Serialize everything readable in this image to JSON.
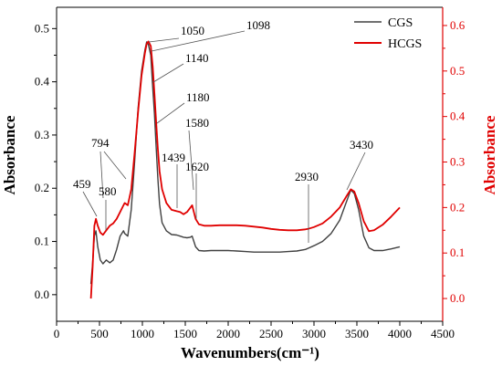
{
  "chart_data": {
    "type": "line",
    "xlabel": "Wavenumbers(cm⁻¹)",
    "ylabel_left": "Absorbance",
    "ylabel_right": "Absorbance",
    "xlim": [
      0,
      4500
    ],
    "ylim_left": [
      -0.05,
      0.54
    ],
    "ylim_right": [
      -0.05,
      0.64
    ],
    "x_ticks": [
      0,
      500,
      1000,
      1500,
      2000,
      2500,
      3000,
      3500,
      4000,
      4500
    ],
    "y_ticks_left": [
      0.0,
      0.1,
      0.2,
      0.3,
      0.4,
      0.5
    ],
    "y_ticks_right": [
      0.0,
      0.1,
      0.2,
      0.3,
      0.4,
      0.5,
      0.6
    ],
    "x_tick_labels": [
      "0",
      "500",
      "1000",
      "1500",
      "2000",
      "2500",
      "3000",
      "3500",
      "4000",
      "4500"
    ],
    "y_tick_labels_left": [
      "0.0",
      "0.1",
      "0.2",
      "0.3",
      "0.4",
      "0.5"
    ],
    "y_tick_labels_right": [
      "0.0",
      "0.1",
      "0.2",
      "0.3",
      "0.4",
      "0.5",
      "0.6"
    ],
    "legend_position": "top-right",
    "series": [
      {
        "name": "CGS",
        "color": "#404040",
        "axis": "left",
        "points": [
          [
            400,
            0.02
          ],
          [
            420,
            0.06
          ],
          [
            440,
            0.11
          ],
          [
            459,
            0.12
          ],
          [
            480,
            0.09
          ],
          [
            510,
            0.065
          ],
          [
            540,
            0.058
          ],
          [
            580,
            0.065
          ],
          [
            620,
            0.06
          ],
          [
            660,
            0.065
          ],
          [
            700,
            0.085
          ],
          [
            740,
            0.11
          ],
          [
            780,
            0.12
          ],
          [
            794,
            0.115
          ],
          [
            830,
            0.11
          ],
          [
            870,
            0.16
          ],
          [
            910,
            0.25
          ],
          [
            950,
            0.35
          ],
          [
            990,
            0.42
          ],
          [
            1030,
            0.46
          ],
          [
            1050,
            0.475
          ],
          [
            1070,
            0.47
          ],
          [
            1098,
            0.45
          ],
          [
            1120,
            0.39
          ],
          [
            1140,
            0.34
          ],
          [
            1160,
            0.28
          ],
          [
            1180,
            0.22
          ],
          [
            1200,
            0.17
          ],
          [
            1230,
            0.135
          ],
          [
            1280,
            0.12
          ],
          [
            1340,
            0.113
          ],
          [
            1400,
            0.112
          ],
          [
            1439,
            0.11
          ],
          [
            1480,
            0.108
          ],
          [
            1520,
            0.107
          ],
          [
            1560,
            0.108
          ],
          [
            1580,
            0.11
          ],
          [
            1600,
            0.1
          ],
          [
            1620,
            0.09
          ],
          [
            1660,
            0.083
          ],
          [
            1720,
            0.082
          ],
          [
            1800,
            0.083
          ],
          [
            1900,
            0.083
          ],
          [
            2000,
            0.083
          ],
          [
            2100,
            0.082
          ],
          [
            2200,
            0.081
          ],
          [
            2300,
            0.08
          ],
          [
            2400,
            0.08
          ],
          [
            2500,
            0.08
          ],
          [
            2600,
            0.08
          ],
          [
            2700,
            0.081
          ],
          [
            2800,
            0.082
          ],
          [
            2900,
            0.085
          ],
          [
            2930,
            0.087
          ],
          [
            3000,
            0.092
          ],
          [
            3100,
            0.1
          ],
          [
            3200,
            0.115
          ],
          [
            3300,
            0.14
          ],
          [
            3380,
            0.175
          ],
          [
            3430,
            0.197
          ],
          [
            3470,
            0.19
          ],
          [
            3520,
            0.16
          ],
          [
            3580,
            0.11
          ],
          [
            3640,
            0.088
          ],
          [
            3700,
            0.083
          ],
          [
            3800,
            0.083
          ],
          [
            3900,
            0.086
          ],
          [
            4000,
            0.09
          ]
        ]
      },
      {
        "name": "HCGS",
        "color": "#e00000",
        "axis": "right",
        "points": [
          [
            400,
            0.0
          ],
          [
            420,
            0.07
          ],
          [
            440,
            0.16
          ],
          [
            459,
            0.175
          ],
          [
            480,
            0.16
          ],
          [
            510,
            0.145
          ],
          [
            540,
            0.14
          ],
          [
            580,
            0.15
          ],
          [
            620,
            0.16
          ],
          [
            660,
            0.165
          ],
          [
            700,
            0.175
          ],
          [
            740,
            0.19
          ],
          [
            780,
            0.205
          ],
          [
            794,
            0.21
          ],
          [
            830,
            0.205
          ],
          [
            870,
            0.24
          ],
          [
            910,
            0.32
          ],
          [
            950,
            0.41
          ],
          [
            990,
            0.49
          ],
          [
            1030,
            0.54
          ],
          [
            1050,
            0.56
          ],
          [
            1070,
            0.565
          ],
          [
            1098,
            0.555
          ],
          [
            1120,
            0.51
          ],
          [
            1140,
            0.45
          ],
          [
            1160,
            0.39
          ],
          [
            1180,
            0.33
          ],
          [
            1200,
            0.28
          ],
          [
            1230,
            0.24
          ],
          [
            1280,
            0.21
          ],
          [
            1340,
            0.195
          ],
          [
            1400,
            0.192
          ],
          [
            1439,
            0.19
          ],
          [
            1480,
            0.185
          ],
          [
            1520,
            0.19
          ],
          [
            1560,
            0.2
          ],
          [
            1580,
            0.205
          ],
          [
            1600,
            0.19
          ],
          [
            1620,
            0.175
          ],
          [
            1660,
            0.163
          ],
          [
            1720,
            0.16
          ],
          [
            1800,
            0.16
          ],
          [
            1900,
            0.161
          ],
          [
            2000,
            0.161
          ],
          [
            2100,
            0.161
          ],
          [
            2200,
            0.16
          ],
          [
            2300,
            0.158
          ],
          [
            2400,
            0.156
          ],
          [
            2500,
            0.153
          ],
          [
            2600,
            0.151
          ],
          [
            2700,
            0.15
          ],
          [
            2800,
            0.15
          ],
          [
            2900,
            0.152
          ],
          [
            2930,
            0.153
          ],
          [
            3000,
            0.157
          ],
          [
            3100,
            0.165
          ],
          [
            3200,
            0.18
          ],
          [
            3300,
            0.2
          ],
          [
            3380,
            0.225
          ],
          [
            3430,
            0.24
          ],
          [
            3470,
            0.235
          ],
          [
            3520,
            0.21
          ],
          [
            3580,
            0.17
          ],
          [
            3640,
            0.148
          ],
          [
            3700,
            0.15
          ],
          [
            3800,
            0.162
          ],
          [
            3900,
            0.18
          ],
          [
            4000,
            0.2
          ]
        ]
      }
    ],
    "annotations": [
      {
        "label": "1050"
      },
      {
        "label": "1098"
      },
      {
        "label": "1140"
      },
      {
        "label": "1180"
      },
      {
        "label": "1580"
      },
      {
        "label": "1439"
      },
      {
        "label": "1620"
      },
      {
        "label": "794"
      },
      {
        "label": "459"
      },
      {
        "label": "580"
      },
      {
        "label": "2930"
      },
      {
        "label": "3430"
      }
    ],
    "grid": false
  }
}
